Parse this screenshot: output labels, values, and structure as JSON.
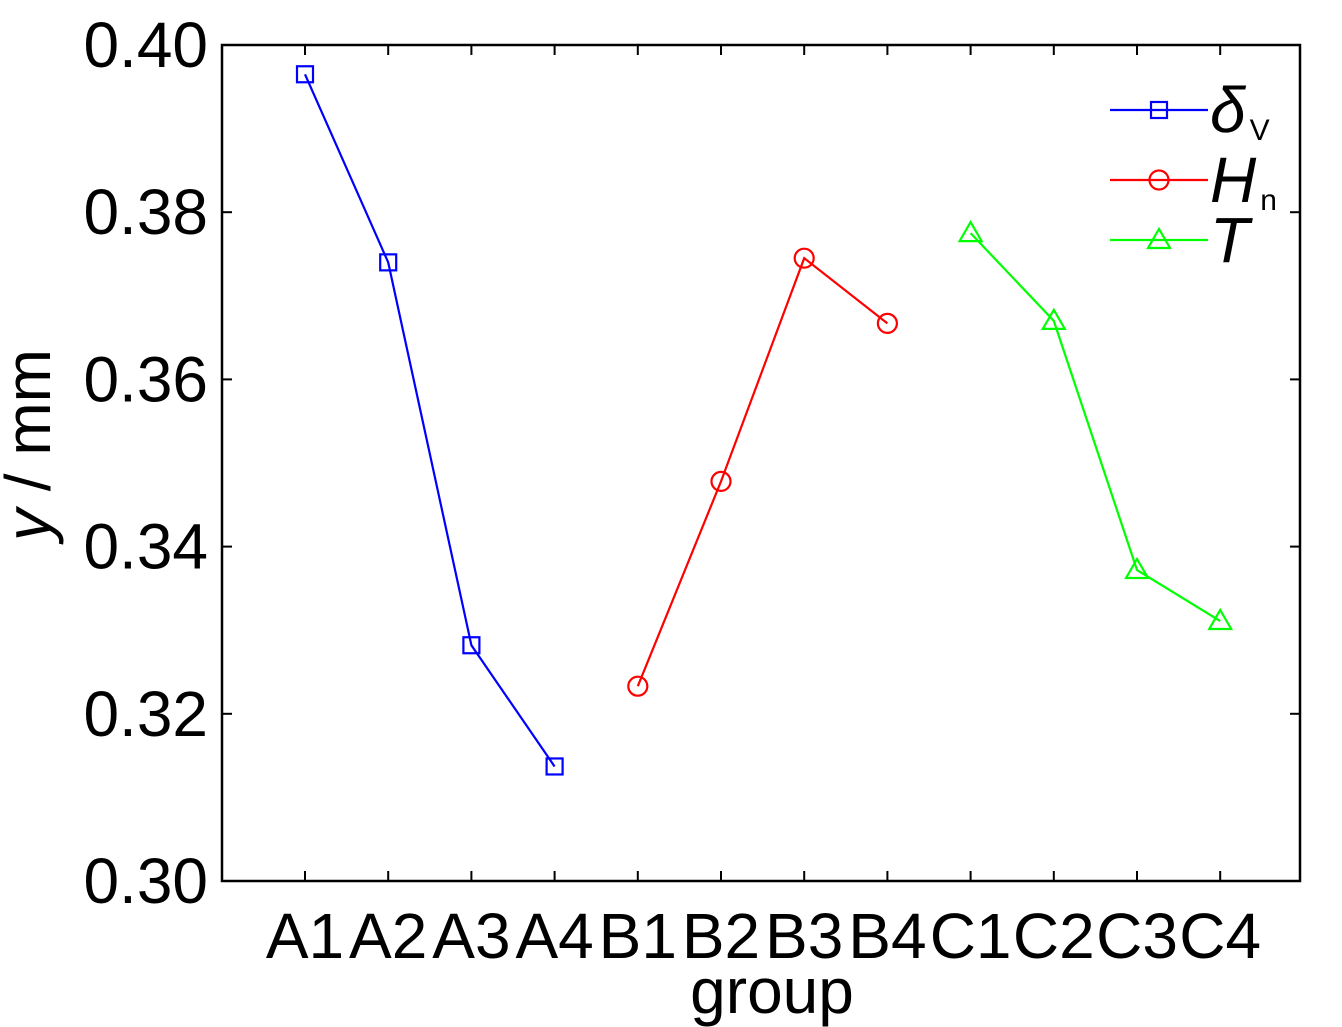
{
  "chart_data": {
    "type": "line",
    "xlabel": "group",
    "ylabel_symbol": "y",
    "ylabel_rest": " / mm",
    "ylim": [
      0.3,
      0.4
    ],
    "yticks": [
      "0.30",
      "0.32",
      "0.34",
      "0.36",
      "0.38",
      "0.40"
    ],
    "categories": [
      "A1",
      "A2",
      "A3",
      "A4",
      "B1",
      "B2",
      "B3",
      "B4",
      "C1",
      "C2",
      "C3",
      "C4"
    ],
    "grid": false,
    "legend_position": "top-right",
    "series": [
      {
        "id": "delta",
        "name_main": "δ",
        "name_sub": "V",
        "marker": "square",
        "color": "#0000ff",
        "x": [
          "A1",
          "A2",
          "A3",
          "A4"
        ],
        "values": [
          0.3965,
          0.374,
          0.3282,
          0.3137
        ]
      },
      {
        "id": "hn",
        "name_main": "H",
        "name_sub": "n",
        "marker": "circle",
        "color": "#ff0000",
        "x": [
          "B1",
          "B2",
          "B3",
          "B4"
        ],
        "values": [
          0.3233,
          0.3478,
          0.3745,
          0.3667
        ]
      },
      {
        "id": "t",
        "name_main": "T",
        "name_sub": "",
        "marker": "triangle",
        "color": "#00ff00",
        "x": [
          "C1",
          "C2",
          "C3",
          "C4"
        ],
        "values": [
          0.3775,
          0.367,
          0.3372,
          0.3311
        ]
      }
    ]
  }
}
